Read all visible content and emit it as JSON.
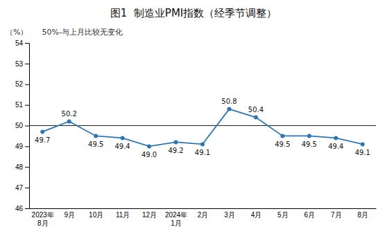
{
  "chart_data": {
    "type": "line",
    "title": "图1  制造业PMI指数（经季节调整）",
    "ylabel": "（%）",
    "annotations": [
      "50%-与上月比较无变化"
    ],
    "categories": [
      "2023年\n8月",
      "9月",
      "10月",
      "11月",
      "12月",
      "2024年\n1月",
      "2月",
      "3月",
      "4月",
      "5月",
      "6月",
      "7月",
      "8月"
    ],
    "values": [
      49.7,
      50.2,
      49.5,
      49.4,
      49.0,
      49.2,
      49.1,
      50.8,
      50.4,
      49.5,
      49.5,
      49.4,
      49.1
    ],
    "value_labels": [
      "49.7",
      "50.2",
      "49.5",
      "49.4",
      "49.0",
      "49.2",
      "49.1",
      "50.8",
      "50.4",
      "49.5",
      "49.5",
      "49.4",
      "49.1"
    ],
    "data_labels": true,
    "reference_line": 50.0,
    "color": "#2e75b6",
    "marker": "circle",
    "ylim": [
      46,
      54
    ],
    "yticks": [
      46,
      47,
      48,
      49,
      50,
      51,
      52,
      53,
      54
    ],
    "grid": false
  }
}
